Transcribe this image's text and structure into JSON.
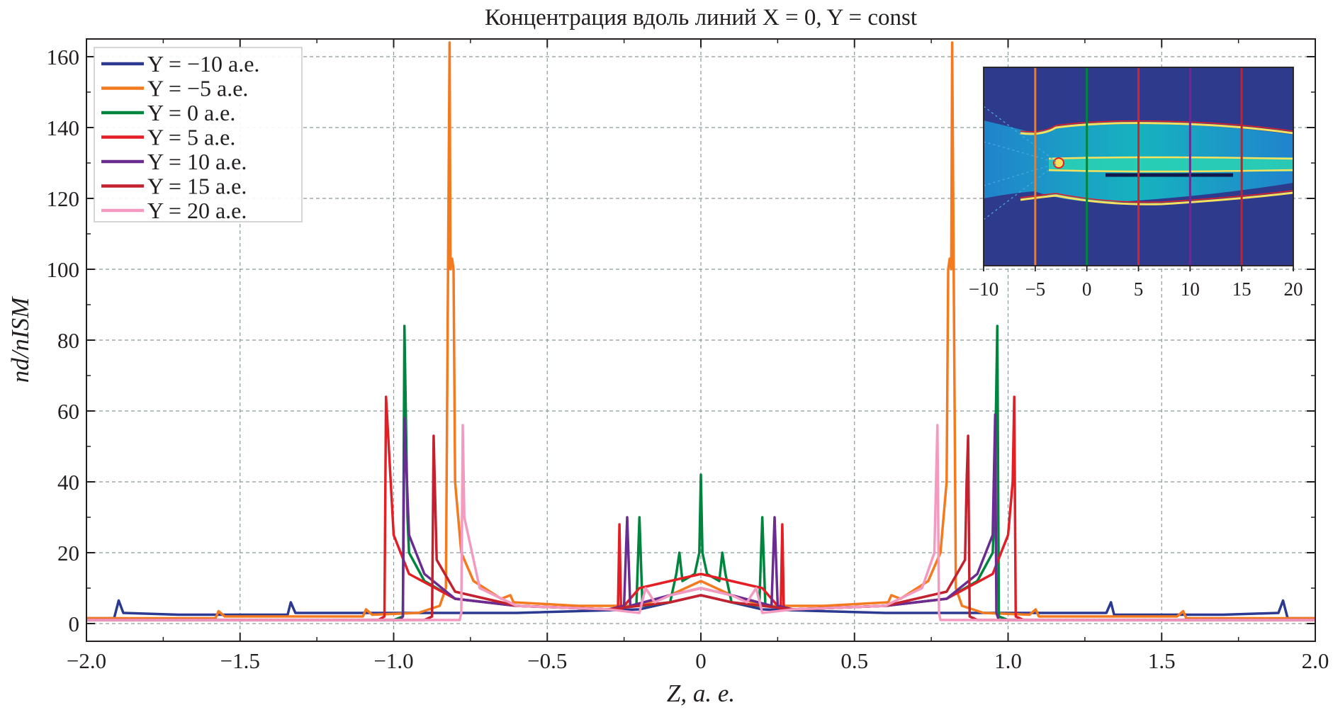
{
  "chart_data": {
    "type": "line",
    "title": "Концентрация вдоль линий X = 0, Y = const",
    "xlabel": "Z, а. е.",
    "ylabel": "nd/nISM",
    "xlim": [
      -2.0,
      2.0
    ],
    "ylim": [
      -5,
      165
    ],
    "x_ticks": [
      -2.0,
      -1.5,
      -1.0,
      -0.5,
      0,
      0.5,
      1.0,
      1.5,
      2.0
    ],
    "x_tick_labels": [
      "−2.0",
      "−1.5",
      "−1.0",
      "−0.5",
      "0",
      "0.5",
      "1.0",
      "1.5",
      "2.0"
    ],
    "y_ticks": [
      0,
      20,
      40,
      60,
      80,
      100,
      120,
      140,
      160
    ],
    "y_tick_labels": [
      "0",
      "20",
      "40",
      "60",
      "80",
      "100",
      "120",
      "140",
      "160"
    ],
    "grid": true,
    "legend_position": "top-left",
    "series": [
      {
        "name": "Y = −10 а.е.",
        "color": "#2b3990",
        "x": [
          -2.0,
          -1.91,
          -1.895,
          -1.88,
          -1.7,
          -1.345,
          -1.335,
          -1.32,
          -1.0,
          -0.6,
          -0.2,
          -0.1,
          0,
          0.1,
          0.2,
          0.6,
          1.0,
          1.32,
          1.335,
          1.345,
          1.7,
          1.88,
          1.895,
          1.91,
          2.0
        ],
        "values": [
          1.5,
          1.5,
          6.5,
          3,
          2.5,
          2.5,
          6,
          3,
          3,
          3,
          4,
          6,
          8,
          6,
          4,
          3,
          3,
          3,
          6,
          2.5,
          2.5,
          3,
          6.5,
          1.5,
          1.5
        ]
      },
      {
        "name": "Y = −5 а.е.",
        "color": "#f47a20",
        "x": [
          -2.0,
          -1.58,
          -1.57,
          -1.55,
          -1.1,
          -1.09,
          -1.07,
          -0.92,
          -0.85,
          -0.83,
          -0.818,
          -0.815,
          -0.81,
          -0.805,
          -0.8,
          -0.78,
          -0.74,
          -0.65,
          -0.62,
          -0.61,
          -0.4,
          -0.2,
          -0.1,
          0,
          0.1,
          0.2,
          0.4,
          0.61,
          0.62,
          0.65,
          0.74,
          0.78,
          0.8,
          0.805,
          0.81,
          0.815,
          0.818,
          0.83,
          0.85,
          0.92,
          1.07,
          1.09,
          1.1,
          1.55,
          1.57,
          1.58,
          2.0
        ],
        "values": [
          1.5,
          1.5,
          3.5,
          2,
          2,
          4,
          2.5,
          3,
          5,
          10,
          164,
          100,
          103,
          100,
          40,
          20,
          12,
          7,
          8,
          6,
          5,
          5,
          8,
          12,
          8,
          5,
          5,
          6,
          8,
          7,
          12,
          20,
          40,
          100,
          103,
          100,
          164,
          10,
          5,
          3,
          2.5,
          4,
          2,
          2,
          3.5,
          1.5,
          1.5
        ]
      },
      {
        "name": "Y = 0 а.е.",
        "color": "#00853e",
        "x": [
          -2.0,
          -1.0,
          -0.97,
          -0.965,
          -0.96,
          -0.955,
          -0.95,
          -0.9,
          -0.8,
          -0.6,
          -0.3,
          -0.21,
          -0.2,
          -0.19,
          -0.1,
          -0.08,
          -0.07,
          -0.06,
          -0.02,
          -0.005,
          0,
          0.005,
          0.02,
          0.06,
          0.07,
          0.08,
          0.1,
          0.19,
          0.2,
          0.21,
          0.3,
          0.6,
          0.8,
          0.9,
          0.95,
          0.955,
          0.96,
          0.965,
          0.97,
          1.0,
          2.0
        ],
        "values": [
          1,
          1,
          2,
          84,
          58,
          30,
          20,
          12,
          7,
          5,
          4,
          5,
          30,
          5,
          6,
          14,
          20,
          12,
          14,
          20,
          42,
          20,
          14,
          12,
          20,
          14,
          6,
          5,
          30,
          5,
          4,
          5,
          7,
          12,
          20,
          30,
          58,
          84,
          2,
          1,
          1
        ]
      },
      {
        "name": "Y = 5 а.е.",
        "color": "#e31e25",
        "x": [
          -2.0,
          -1.05,
          -1.03,
          -1.025,
          -1.0,
          -0.95,
          -0.8,
          -0.6,
          -0.3,
          -0.27,
          -0.265,
          -0.26,
          -0.2,
          -0.1,
          0,
          0.1,
          0.2,
          0.26,
          0.265,
          0.27,
          0.3,
          0.6,
          0.8,
          0.95,
          1.0,
          1.015,
          1.02,
          1.025,
          1.05,
          2.0
        ],
        "values": [
          1,
          1,
          2,
          64,
          25,
          14,
          7,
          5,
          4,
          4,
          28,
          4,
          10,
          12,
          14,
          12,
          10,
          4,
          28,
          4,
          4,
          5,
          7,
          14,
          25,
          40,
          64,
          2,
          1,
          1
        ]
      },
      {
        "name": "Y = 10 а.е.",
        "color": "#6a2c91",
        "x": [
          -2.0,
          -0.98,
          -0.97,
          -0.965,
          -0.95,
          -0.9,
          -0.8,
          -0.6,
          -0.3,
          -0.25,
          -0.24,
          -0.23,
          -0.1,
          0,
          0.1,
          0.23,
          0.24,
          0.25,
          0.3,
          0.6,
          0.8,
          0.9,
          0.95,
          0.958,
          0.962,
          0.97,
          2.0
        ],
        "values": [
          1,
          1,
          2,
          58,
          25,
          14,
          7,
          5,
          4,
          5,
          30,
          5,
          8,
          10,
          8,
          5,
          30,
          5,
          4,
          5,
          7,
          14,
          25,
          59,
          3,
          1,
          1
        ]
      },
      {
        "name": "Y = 15 а.е.",
        "color": "#c4212e",
        "x": [
          -2.0,
          -0.9,
          -0.875,
          -0.87,
          -0.86,
          -0.8,
          -0.6,
          -0.3,
          -0.1,
          0,
          0.1,
          0.3,
          0.6,
          0.8,
          0.86,
          0.865,
          0.87,
          0.875,
          0.9,
          2.0
        ],
        "values": [
          1,
          1,
          2,
          53,
          18,
          9,
          5,
          4,
          6,
          8,
          6,
          4,
          5,
          9,
          18,
          40,
          53,
          2,
          1,
          1
        ]
      },
      {
        "name": "Y = 20 а.е.",
        "color": "#f49ac1",
        "x": [
          -2.0,
          -0.785,
          -0.78,
          -0.775,
          -0.77,
          -0.72,
          -0.6,
          -0.3,
          -0.2,
          -0.18,
          -0.15,
          -0.1,
          0,
          0.1,
          0.15,
          0.18,
          0.2,
          0.3,
          0.6,
          0.72,
          0.76,
          0.77,
          0.775,
          0.78,
          0.79,
          2.0
        ],
        "values": [
          1,
          1,
          3,
          56,
          30,
          10,
          5,
          4,
          3,
          10,
          6,
          8,
          10,
          8,
          6,
          10,
          3,
          4,
          5,
          10,
          20,
          56,
          3,
          1,
          1,
          1
        ]
      }
    ]
  },
  "inset": {
    "x_ticks": [
      -10,
      -5,
      0,
      5,
      10,
      15,
      20
    ],
    "x_tick_labels": [
      "−10",
      "−5",
      "0",
      "5",
      "10",
      "15",
      "20"
    ],
    "background_color": "#2e3a8c",
    "line_positions": [
      -5,
      0,
      5,
      10,
      15
    ],
    "line_colors": [
      "#f47a20",
      "#00853e",
      "#e31e25",
      "#6a2c91",
      "#c4212e"
    ]
  }
}
